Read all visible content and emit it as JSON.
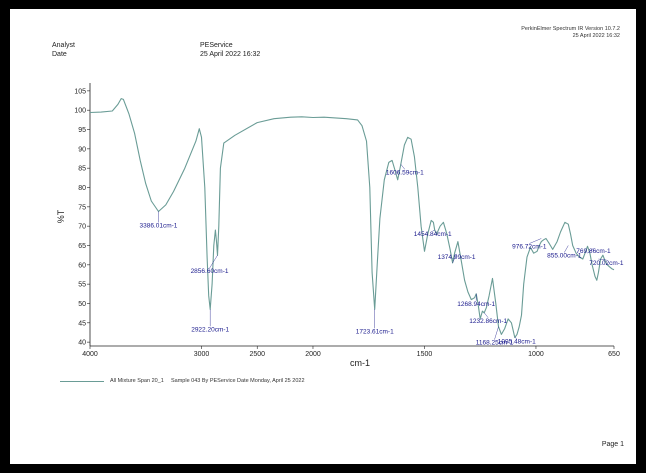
{
  "document": {
    "analyst_label": "Analyst",
    "date_label": "Date",
    "analyst_value": "PEService",
    "date_value": "25 April 2022 16:32",
    "software_line": "PerkinElmer Spectrum IR Version 10.7.2",
    "software_date": "25 April 2022 16:32",
    "page_label": "Page 1"
  },
  "legend": {
    "series_name": "All Mixture Span 20_1",
    "description": "Sample 043 By PEService Date Monday, April 25 2022"
  },
  "colors": {
    "spectrum": "#6a9c96",
    "peak_labels": "#1a1a8c",
    "axes": "#222222"
  },
  "chart_data": {
    "type": "line",
    "xlabel": "cm-1",
    "ylabel": "%T",
    "xlim": [
      4000,
      650
    ],
    "ylim": [
      39,
      106
    ],
    "x_reversed": true,
    "grid": false,
    "x_ticks": [
      4000,
      3000,
      2500,
      2000,
      1500,
      1000,
      650
    ],
    "y_ticks": [
      40,
      45,
      50,
      55,
      60,
      65,
      70,
      75,
      80,
      85,
      90,
      95,
      100,
      105
    ],
    "series": [
      {
        "name": "All Mixture Span 20_1",
        "x": [
          4000,
          3900,
          3800,
          3750,
          3720,
          3700,
          3650,
          3600,
          3550,
          3500,
          3450,
          3386,
          3320,
          3250,
          3150,
          3050,
          3020,
          3000,
          2970,
          2950,
          2935,
          2922,
          2905,
          2890,
          2875,
          2865,
          2856,
          2845,
          2830,
          2800,
          2700,
          2500,
          2350,
          2200,
          2100,
          2000,
          1950,
          1900,
          1850,
          1800,
          1780,
          1760,
          1745,
          1735,
          1723,
          1712,
          1700,
          1680,
          1660,
          1645,
          1630,
          1620,
          1606,
          1590,
          1575,
          1560,
          1545,
          1530,
          1515,
          1500,
          1485,
          1470,
          1460,
          1454,
          1445,
          1430,
          1415,
          1400,
          1385,
          1374,
          1365,
          1350,
          1335,
          1320,
          1305,
          1290,
          1275,
          1268,
          1260,
          1250,
          1240,
          1232,
          1222,
          1210,
          1195,
          1180,
          1168,
          1155,
          1140,
          1125,
          1110,
          1095,
          1085,
          1075,
          1065,
          1055,
          1040,
          1025,
          1010,
          995,
          985,
          976,
          965,
          955,
          940,
          925,
          905,
          890,
          870,
          855,
          845,
          835,
          820,
          805,
          790,
          780,
          769,
          758,
          748,
          735,
          727,
          720,
          710,
          700,
          690,
          680,
          670,
          660,
          650
        ],
        "y": [
          99.4,
          99.5,
          99.8,
          101.5,
          103,
          102.8,
          99,
          94,
          87,
          81,
          76.5,
          73.8,
          75.5,
          79,
          85,
          92,
          95.2,
          93,
          80,
          62,
          52,
          48.5,
          55,
          65,
          69,
          66,
          62.5,
          70,
          85,
          91.5,
          93.5,
          96.8,
          97.8,
          98.2,
          98.3,
          98.1,
          98.2,
          98,
          97.8,
          97.5,
          96,
          92,
          80,
          58,
          48.5,
          60,
          72,
          82,
          86.5,
          87,
          84,
          82,
          86,
          91,
          93,
          92.5,
          88,
          80,
          70,
          63.5,
          68,
          71.5,
          71,
          69,
          68,
          70,
          71,
          68,
          64,
          60.5,
          63,
          66,
          61,
          56,
          53,
          51,
          51.5,
          52.5,
          50,
          46,
          48,
          47.6,
          49,
          52,
          56.5,
          50,
          44,
          42,
          43.5,
          46,
          45,
          41.2,
          42,
          44,
          47,
          55,
          62,
          64.5,
          63,
          63.5,
          65,
          66,
          66.5,
          66.8,
          65.5,
          64,
          66,
          68.5,
          71,
          70.5,
          68,
          65,
          63,
          62,
          61.5,
          63,
          64.8,
          63,
          60,
          57,
          56,
          58,
          61.5,
          62.5,
          61,
          60,
          59.5,
          59,
          58.7
        ]
      }
    ],
    "peak_labels": [
      {
        "text": "3386.01cm-1",
        "x": 3386,
        "y": 73.8
      },
      {
        "text": "2922.20cm-1",
        "x": 2922,
        "y": 48.5
      },
      {
        "text": "2856.60cm-1",
        "x": 2856,
        "y": 62.5
      },
      {
        "text": "1723.61cm-1",
        "x": 1723,
        "y": 48.5
      },
      {
        "text": "1606.59cm-1",
        "x": 1606,
        "y": 86
      },
      {
        "text": "1454.84cm-1",
        "x": 1454,
        "y": 69
      },
      {
        "text": "1374.99cm-1",
        "x": 1374,
        "y": 60.5
      },
      {
        "text": "1268.94cm-1",
        "x": 1268,
        "y": 52.5
      },
      {
        "text": "1232.86cm-1",
        "x": 1232,
        "y": 47.6
      },
      {
        "text": "1168.25cm-1",
        "x": 1168,
        "y": 44
      },
      {
        "text": "1095.48cm-1",
        "x": 1095,
        "y": 41.2
      },
      {
        "text": "976.72cm-1",
        "x": 976,
        "y": 66.8
      },
      {
        "text": "855.00cm-1",
        "x": 855,
        "y": 65
      },
      {
        "text": "769.86cm-1",
        "x": 769,
        "y": 63
      },
      {
        "text": "720.02cm-1",
        "x": 720,
        "y": 61.5
      }
    ]
  }
}
